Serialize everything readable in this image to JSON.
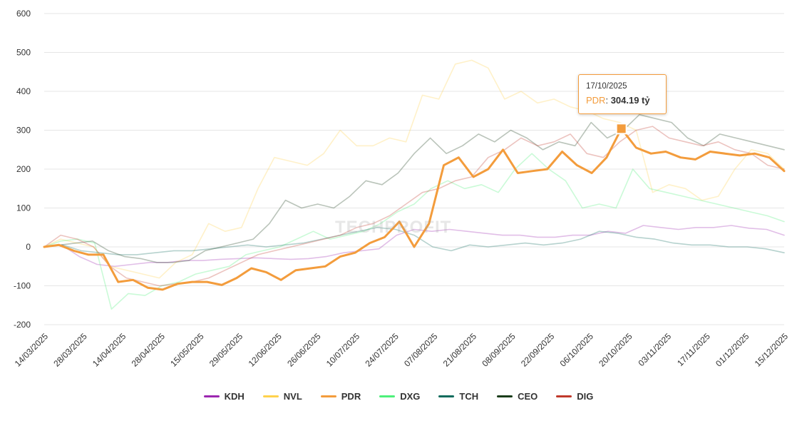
{
  "chart_data": {
    "type": "line",
    "y_ticks": [
      "600",
      "500",
      "400",
      "300",
      "200",
      "100",
      "0",
      "-100",
      "-200"
    ],
    "ylim": [
      -200,
      600
    ],
    "x_ticks": [
      "14/03/2025",
      "28/03/2025",
      "14/04/2025",
      "28/04/2025",
      "15/05/2025",
      "29/05/2025",
      "12/06/2025",
      "26/06/2025",
      "10/07/2025",
      "24/07/2025",
      "07/08/2025",
      "21/08/2025",
      "08/09/2025",
      "22/09/2025",
      "06/10/2025",
      "20/10/2025",
      "03/11/2025",
      "17/11/2025",
      "01/12/2025",
      "15/12/2025"
    ],
    "series": [
      {
        "name": "KDH",
        "color": "#9c27b0",
        "highlight": false,
        "values": [
          0,
          5,
          -25,
          -45,
          -50,
          -45,
          -40,
          -40,
          -35,
          -35,
          -32,
          -30,
          -28,
          -30,
          -32,
          -30,
          -25,
          -15,
          -10,
          -5,
          30,
          45,
          40,
          45,
          40,
          35,
          30,
          30,
          25,
          25,
          30,
          30,
          40,
          35,
          55,
          50,
          45,
          50,
          50,
          55,
          48,
          45,
          30
        ]
      },
      {
        "name": "NVL",
        "color": "#ffd24d",
        "highlight": false,
        "values": [
          0,
          20,
          10,
          0,
          -50,
          -60,
          -70,
          -80,
          -40,
          -20,
          60,
          40,
          50,
          150,
          230,
          220,
          210,
          240,
          300,
          260,
          260,
          280,
          270,
          390,
          380,
          470,
          480,
          460,
          380,
          400,
          370,
          380,
          360,
          350,
          330,
          320,
          300,
          140,
          160,
          150,
          120,
          130,
          200,
          250,
          240,
          200
        ]
      },
      {
        "name": "PDR",
        "color": "#f39c3c",
        "highlight": true,
        "values": [
          0,
          5,
          -10,
          -20,
          -20,
          -90,
          -85,
          -105,
          -110,
          -95,
          -90,
          -90,
          -98,
          -80,
          -55,
          -65,
          -85,
          -60,
          -55,
          -50,
          -25,
          -15,
          10,
          25,
          65,
          0,
          60,
          210,
          230,
          180,
          200,
          250,
          190,
          195,
          200,
          245,
          210,
          190,
          230,
          304,
          255,
          240,
          245,
          230,
          225,
          245,
          240,
          235,
          240,
          230,
          195
        ]
      },
      {
        "name": "DXG",
        "color": "#4ef07a",
        "highlight": false,
        "values": [
          0,
          15,
          20,
          10,
          -160,
          -120,
          -125,
          -100,
          -90,
          -70,
          -60,
          -50,
          -20,
          -10,
          0,
          20,
          40,
          20,
          30,
          40,
          60,
          90,
          110,
          150,
          170,
          150,
          160,
          140,
          200,
          240,
          200,
          170,
          100,
          110,
          100,
          200,
          150,
          140,
          130,
          120,
          110,
          100,
          90,
          80,
          65
        ]
      },
      {
        "name": "TCH",
        "color": "#0d6b5c",
        "highlight": false,
        "values": [
          0,
          5,
          -10,
          -15,
          -20,
          -20,
          -15,
          -10,
          -10,
          -5,
          0,
          5,
          0,
          5,
          10,
          20,
          30,
          40,
          50,
          45,
          30,
          0,
          -10,
          5,
          0,
          5,
          10,
          5,
          10,
          20,
          40,
          35,
          25,
          20,
          10,
          5,
          5,
          0,
          0,
          -5,
          -15
        ]
      },
      {
        "name": "CEO",
        "color": "#1a3d1a",
        "highlight": false,
        "values": [
          0,
          5,
          10,
          15,
          -10,
          -25,
          -30,
          -40,
          -40,
          -35,
          -10,
          0,
          10,
          20,
          60,
          120,
          100,
          110,
          100,
          130,
          170,
          160,
          190,
          240,
          280,
          240,
          260,
          290,
          270,
          300,
          280,
          250,
          270,
          260,
          320,
          280,
          300,
          340,
          330,
          320,
          280,
          260,
          290,
          280,
          270,
          260,
          250
        ]
      },
      {
        "name": "DIG",
        "color": "#c0392b",
        "highlight": false,
        "values": [
          0,
          30,
          20,
          0,
          -50,
          -80,
          -90,
          -100,
          -95,
          -90,
          -80,
          -60,
          -40,
          -20,
          -10,
          0,
          10,
          20,
          30,
          50,
          60,
          80,
          110,
          140,
          150,
          170,
          180,
          230,
          250,
          280,
          260,
          270,
          290,
          240,
          230,
          270,
          300,
          310,
          280,
          270,
          260,
          270,
          250,
          240,
          210,
          200
        ]
      }
    ],
    "tooltip": {
      "date": "17/10/2025",
      "series": "PDR",
      "sep": ": ",
      "value": "304.19 tỷ"
    },
    "watermark": "TECHPROFIT",
    "legend_placement": "bottom-center"
  }
}
